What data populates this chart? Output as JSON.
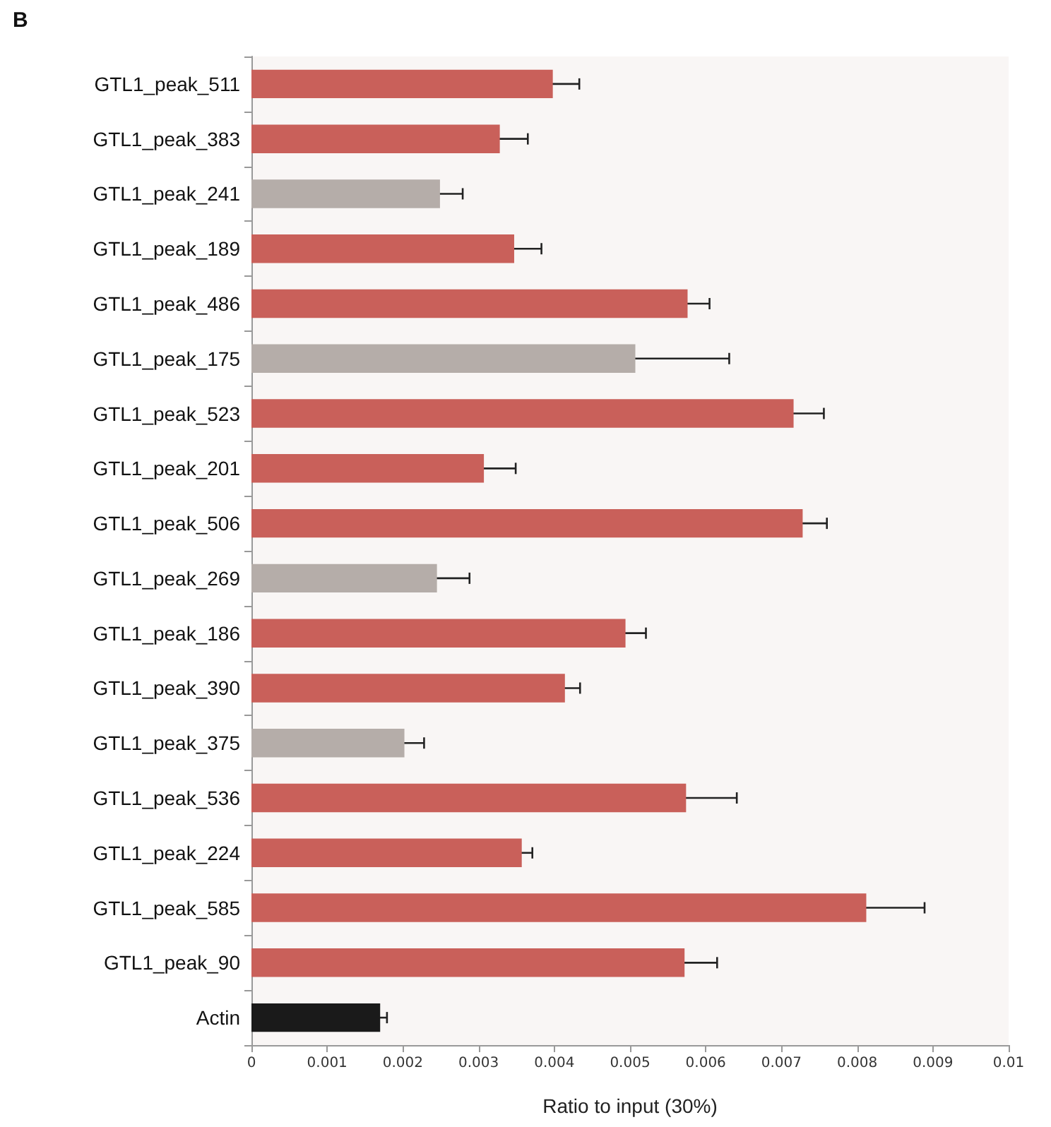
{
  "chart_data": {
    "type": "bar",
    "orientation": "horizontal",
    "title": "B",
    "xlabel": "Ratio to input (30%)",
    "categories": [
      "GTL1_peak_511",
      "GTL1_peak_383",
      "GTL1_peak_241",
      "GTL1_peak_189",
      "GTL1_peak_486",
      "GTL1_peak_175",
      "GTL1_peak_523",
      "GTL1_peak_201",
      "GTL1_peak_506",
      "GTL1_peak_269",
      "GTL1_peak_186",
      "GTL1_peak_390",
      "GTL1_peak_375",
      "GTL1_peak_536",
      "GTL1_peak_224",
      "GTL1_peak_585",
      "GTL1_peak_90",
      "Actin"
    ],
    "values": [
      0.00398,
      0.00328,
      0.00249,
      0.00347,
      0.00576,
      0.00507,
      0.00716,
      0.00307,
      0.00728,
      0.00245,
      0.00494,
      0.00414,
      0.00202,
      0.00574,
      0.00357,
      0.00812,
      0.00572,
      0.0017
    ],
    "errors": [
      0.00035,
      0.00037,
      0.0003,
      0.00036,
      0.00029,
      0.00124,
      0.0004,
      0.00042,
      0.00032,
      0.00043,
      0.00027,
      0.0002,
      0.00026,
      0.00067,
      0.00014,
      0.00077,
      0.00043,
      9e-05
    ],
    "colors": [
      "#c9605a",
      "#c9605a",
      "#b5ada9",
      "#c9605a",
      "#c9605a",
      "#b5ada9",
      "#c9605a",
      "#c9605a",
      "#c9605a",
      "#b5ada9",
      "#c9605a",
      "#c9605a",
      "#b5ada9",
      "#c9605a",
      "#c9605a",
      "#c9605a",
      "#c9605a",
      "#1a1a1a"
    ],
    "xlim": [
      0,
      0.01
    ],
    "xticks": [
      0,
      0.001,
      0.002,
      0.003,
      0.004,
      0.005,
      0.006,
      0.007,
      0.008,
      0.009,
      0.01
    ],
    "grid": false
  }
}
